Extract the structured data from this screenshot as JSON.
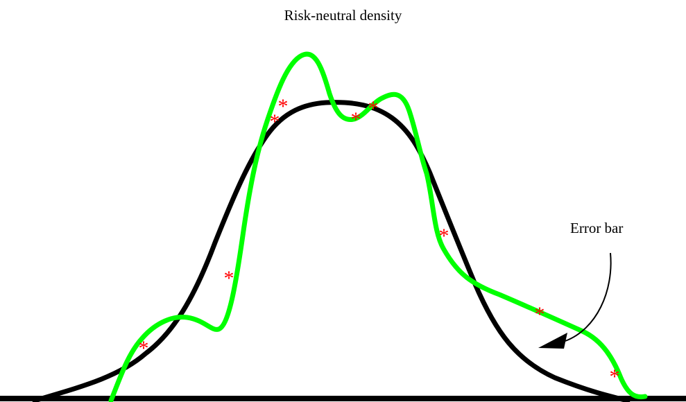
{
  "title": "Risk-neutral density",
  "annotation": "Error bar",
  "colors": {
    "baseline": "#000000",
    "density_curve": "#000000",
    "fitted_curve": "#00ff00",
    "markers": "#ff0000",
    "arrow": "#000000"
  },
  "legend": {
    "marker_glyph": "*"
  }
}
